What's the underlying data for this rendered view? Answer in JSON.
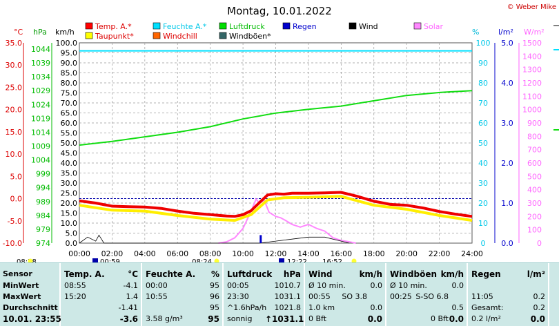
{
  "chart_data": {
    "type": "line",
    "title": "Montag, 10.01.2022",
    "credit": "© Weber Mike",
    "legend": [
      {
        "name": "Temp. A.*",
        "color": "#ff0000"
      },
      {
        "name": "Feuchte A.*",
        "color": "#00e0ff"
      },
      {
        "name": "Luftdruck",
        "color": "#00dd00"
      },
      {
        "name": "Regen",
        "color": "#0000cc"
      },
      {
        "name": "Wind",
        "color": "#000000"
      },
      {
        "name": "Solar",
        "color": "#ff88ff"
      },
      {
        "name": "Taupunkt*",
        "color": "#ffff00"
      },
      {
        "name": "Windchill",
        "color": "#ff6600"
      },
      {
        "name": "Windböen*",
        "color": "#336666"
      }
    ],
    "axis_units": {
      "temp": "°C",
      "pressure": "hPa",
      "wind": "km/h",
      "humidity": "%",
      "rain": "l/m²",
      "solar": "W/m²"
    },
    "temp_ticks": [
      "35.0",
      "30.0",
      "25.0",
      "20.0",
      "15.0",
      "10.0",
      "5.0",
      "0.0",
      "-5.0",
      "-10.0"
    ],
    "pressure_ticks": [
      "1044",
      "1039",
      "1034",
      "1029",
      "1024",
      "1019",
      "1014",
      "1009",
      "1004",
      "999",
      "994",
      "989",
      "984",
      "979",
      "974"
    ],
    "wind_ticks": [
      "100.0",
      "95.0",
      "90.0",
      "85.0",
      "80.0",
      "75.0",
      "70.0",
      "65.0",
      "60.0",
      "55.0",
      "50.0",
      "45.0",
      "40.0",
      "35.0",
      "30.0",
      "25.0",
      "20.0",
      "15.0",
      "10.0",
      "5.0",
      "0.0"
    ],
    "humidity_ticks": [
      "100",
      "90",
      "80",
      "70",
      "60",
      "50",
      "40",
      "30",
      "20",
      "10",
      "0"
    ],
    "rain_ticks": [
      "5.0",
      "4.0",
      "3.0",
      "2.0",
      "1.0",
      "0.0"
    ],
    "solar_ticks": [
      "1500",
      "1400",
      "1300",
      "1200",
      "1100",
      "1000",
      "900",
      "800",
      "700",
      "600",
      "500",
      "400",
      "300",
      "200",
      "100",
      "0"
    ],
    "x_ticks": [
      "00:00",
      "02:00",
      "04:00",
      "06:00",
      "08:00",
      "10:00",
      "12:00",
      "14:00",
      "16:00",
      "18:00",
      "20:00",
      "22:00",
      "24:00"
    ],
    "sun_marks": [
      "08:28",
      "00:59",
      "08:24",
      "12:22",
      "16:52"
    ],
    "x_range": [
      0,
      24
    ],
    "wind_range": [
      0,
      100
    ],
    "series": [
      {
        "name": "Temp. A.*",
        "axis": "temp °C",
        "x": [
          0,
          1,
          2,
          3,
          4,
          5,
          6,
          7,
          8,
          9,
          9.5,
          10,
          10.5,
          11,
          11.5,
          12,
          12.5,
          13,
          14,
          15,
          16,
          17,
          18,
          19,
          20,
          21,
          22,
          23,
          24
        ],
        "y": [
          -0.5,
          -1.0,
          -1.7,
          -1.8,
          -1.9,
          -2.2,
          -2.8,
          -3.3,
          -3.6,
          -3.9,
          -4.0,
          -3.6,
          -2.7,
          -0.9,
          0.8,
          1.1,
          1.0,
          1.2,
          1.2,
          1.3,
          1.4,
          0.5,
          -0.6,
          -1.3,
          -1.5,
          -2.1,
          -2.9,
          -3.5,
          -4.0
        ]
      },
      {
        "name": "Taupunkt*",
        "axis": "temp °C",
        "x": [
          0,
          2,
          4,
          6,
          8,
          9.5,
          10.5,
          11.5,
          12.5,
          14,
          16,
          18,
          20,
          22,
          24
        ],
        "y": [
          -1.5,
          -2.6,
          -2.8,
          -3.8,
          -4.6,
          -4.9,
          -3.6,
          -0.3,
          0.2,
          0.3,
          0.5,
          -1.5,
          -2.4,
          -3.8,
          -4.9
        ]
      },
      {
        "name": "Feuchte A.*",
        "axis": "humidity %",
        "x": [
          0,
          4,
          8,
          10,
          11,
          12,
          14,
          16,
          20,
          24
        ],
        "y": [
          96,
          96,
          96,
          96,
          96,
          96,
          96,
          96,
          96,
          96
        ]
      },
      {
        "name": "Luftdruck",
        "axis": "pressure hPa",
        "x": [
          0,
          2,
          4,
          6,
          8,
          10,
          12,
          14,
          16,
          18,
          20,
          22,
          24
        ],
        "y": [
          1010.7,
          1012.1,
          1013.8,
          1015.5,
          1017.6,
          1020.5,
          1022.7,
          1024.1,
          1025.3,
          1027.3,
          1029.3,
          1030.4,
          1031.1
        ]
      },
      {
        "name": "Solar",
        "axis": "solar W/m²",
        "x": [
          8.5,
          9,
          9.5,
          10,
          10.5,
          10.8,
          11,
          11.3,
          11.6,
          12,
          12.3,
          12.6,
          13,
          13.5,
          14,
          14.5,
          15,
          15.5,
          16,
          16.5,
          16.9
        ],
        "y": [
          0,
          10,
          40,
          110,
          240,
          330,
          300,
          320,
          230,
          200,
          190,
          170,
          140,
          120,
          140,
          110,
          90,
          40,
          20,
          10,
          0
        ]
      },
      {
        "name": "Wind",
        "axis": "wind km/h",
        "x": [
          0,
          0.5,
          1,
          1.2,
          1.5,
          2,
          8,
          11,
          12,
          13,
          14,
          15,
          16,
          16.5
        ],
        "y": [
          0,
          3,
          1,
          4,
          0,
          0,
          0,
          0,
          1,
          2,
          3,
          3,
          1,
          0
        ]
      }
    ],
    "rain_bars": [
      {
        "time": "11:05",
        "value": 0.2
      }
    ]
  },
  "table": {
    "sensor": {
      "header": "Sensor",
      "rows": [
        "MinWert",
        "MaxWert",
        "Durchschnitt",
        "10.01. 23:55"
      ]
    },
    "temp": {
      "header": "Temp. A.",
      "unit": "°C",
      "time": [
        "08:55",
        "15:20",
        "",
        ""
      ],
      "val": [
        "-4.1",
        "1.4",
        "-1.41",
        "-3.6"
      ]
    },
    "hum": {
      "header": "Feuchte A.",
      "unit": "%",
      "time": [
        "00:00",
        "10:55",
        "",
        "3.58 g/m³"
      ],
      "val": [
        "95",
        "96",
        "95",
        "95"
      ]
    },
    "press": {
      "header": "Luftdruck",
      "unit": "hPa",
      "time": [
        "00:05",
        "23:30",
        "^1.6hPa/h",
        "sonnig"
      ],
      "val": [
        "1010.7",
        "1031.1",
        "1021.8",
        "1031.1"
      ],
      "trend": "↑"
    },
    "wind": {
      "header": "Wind",
      "unit": "km/h",
      "a": [
        "Ø 10 min.",
        "00:55",
        "1.0 km",
        "0 Bft"
      ],
      "b": [
        "",
        "SO 3.8",
        "",
        ""
      ],
      "c": [
        "0.0",
        "",
        "0.0",
        "0.0"
      ]
    },
    "gust": {
      "header": "Windböen",
      "unit": "km/h",
      "a": [
        "Ø 10 min.",
        "00:25",
        "",
        ""
      ],
      "b": [
        "",
        "S-SO 6.8",
        "",
        "0 Bft"
      ],
      "c": [
        "0.0",
        "",
        "0.5",
        "0.0"
      ]
    },
    "rain": {
      "header": "Regen",
      "unit": "l/m²",
      "a": [
        "",
        "11:05",
        "Gesamt:",
        "0.2 l/m²"
      ],
      "c": [
        "",
        "0.2",
        "0.2",
        "0.0"
      ]
    }
  }
}
